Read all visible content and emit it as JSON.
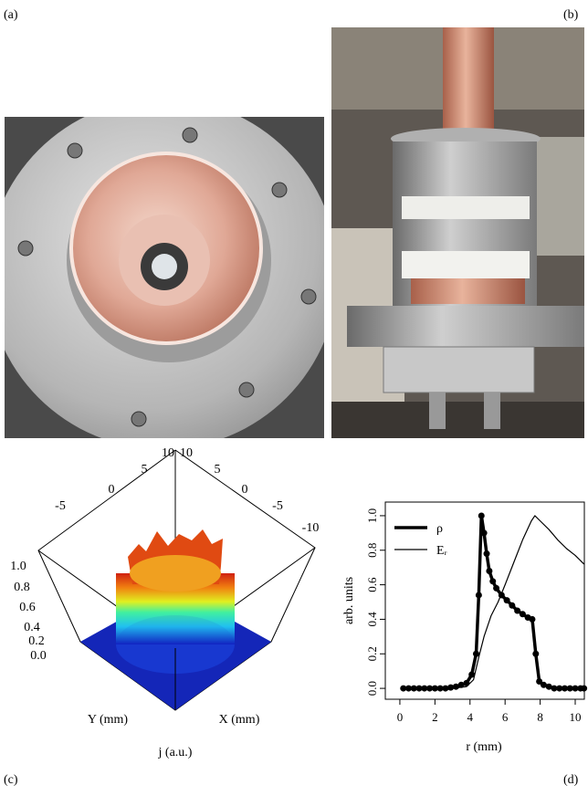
{
  "panel_labels": [
    "(a)",
    "(b)",
    "(c)",
    "(d)"
  ],
  "surface_plot": {
    "y_axis_ticks": [
      "-5",
      "0",
      "5",
      "10"
    ],
    "x_axis_ticks": [
      "10",
      "5",
      "0",
      "-5",
      "-10"
    ],
    "z_axis_ticks": [
      "1.0",
      "0.8",
      "0.6",
      "0.4",
      "0.2",
      "0.0"
    ],
    "y_axis_label": "Y (mm)",
    "x_axis_label": "X (mm)",
    "z_axis_label": "j (a.u.)"
  },
  "chart_data": {
    "type": "line",
    "xlabel": "r (mm)",
    "ylabel": "arb. units",
    "xlim": [
      -0.83,
      10.52
    ],
    "xticks": [
      0,
      2,
      4,
      6,
      8,
      10
    ],
    "ylim": [
      -0.063,
      1.079
    ],
    "yticks": [
      {
        "value": 0,
        "label": "0.0"
      },
      0.2,
      0.4,
      0.6,
      0.8,
      {
        "value": 1,
        "label": "1.0"
      }
    ],
    "legend": "top-left",
    "series": [
      {
        "name": "ρ",
        "color": "#000000",
        "line_width": 3.5,
        "marker": "circle",
        "x": [
          0.2,
          0.5,
          0.8,
          1.1,
          1.4,
          1.7,
          2.0,
          2.3,
          2.6,
          2.9,
          3.2,
          3.5,
          3.8,
          4.1,
          4.35,
          4.5,
          4.65,
          4.8,
          4.95,
          5.1,
          5.3,
          5.5,
          5.8,
          6.1,
          6.4,
          6.7,
          7.0,
          7.3,
          7.55,
          7.75,
          7.95,
          8.2,
          8.5,
          8.8,
          9.1,
          9.4,
          9.7,
          10.0,
          10.3,
          10.5
        ],
        "values": [
          0,
          0,
          0,
          0,
          0,
          0,
          0,
          0,
          0,
          0.005,
          0.01,
          0.02,
          0.03,
          0.08,
          0.2,
          0.54,
          1.0,
          0.9,
          0.78,
          0.68,
          0.62,
          0.58,
          0.54,
          0.51,
          0.48,
          0.45,
          0.43,
          0.41,
          0.4,
          0.2,
          0.04,
          0.02,
          0.01,
          0,
          0,
          0,
          0,
          0,
          0,
          0
        ]
      },
      {
        "name": "Eᵣ",
        "color": "#000000",
        "line_width": 1.2,
        "x": [
          0.2,
          1,
          2,
          3,
          3.8,
          4.2,
          4.5,
          4.8,
          5.2,
          5.6,
          6,
          6.5,
          7,
          7.5,
          7.7,
          8,
          8.5,
          9,
          9.5,
          10,
          10.5
        ],
        "values": [
          0,
          0,
          0,
          0,
          0.01,
          0.05,
          0.18,
          0.3,
          0.42,
          0.5,
          0.6,
          0.73,
          0.86,
          0.97,
          1.0,
          0.97,
          0.92,
          0.86,
          0.81,
          0.77,
          0.72
        ]
      }
    ]
  }
}
